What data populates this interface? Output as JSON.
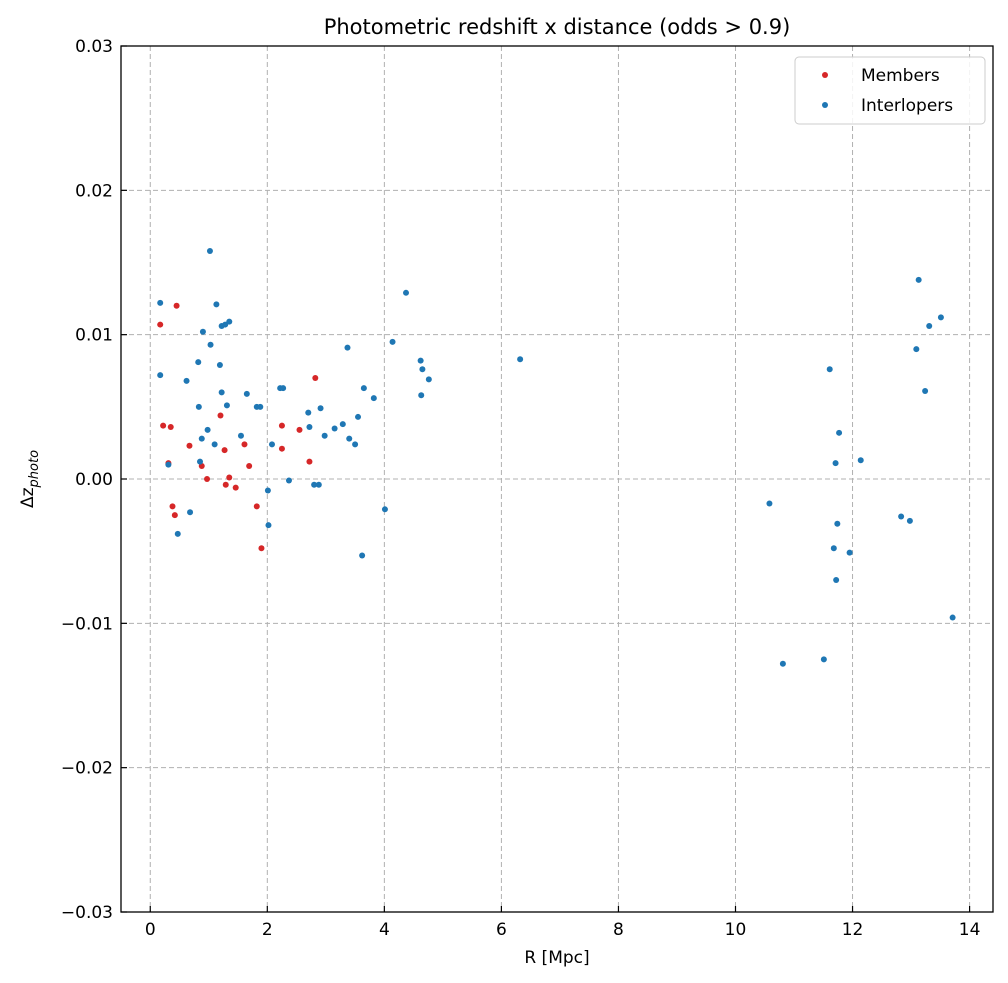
{
  "chart_data": {
    "type": "scatter",
    "title": "Photometric redshift x distance (odds > 0.9)",
    "xlabel": "R [Mpc]",
    "ylabel": "Δz",
    "ylabel_subscript": "photo",
    "xlim": [
      -0.5,
      14.4
    ],
    "ylim": [
      -0.03,
      0.03
    ],
    "xticks": [
      0,
      2,
      4,
      6,
      8,
      10,
      12,
      14
    ],
    "xtick_labels": [
      "0",
      "2",
      "4",
      "6",
      "8",
      "10",
      "12",
      "14"
    ],
    "yticks": [
      -0.03,
      -0.02,
      -0.01,
      0.0,
      0.01,
      0.02,
      0.03
    ],
    "ytick_labels": [
      "−0.03",
      "−0.02",
      "−0.01",
      "0.00",
      "0.01",
      "0.02",
      "0.03"
    ],
    "grid": true,
    "legend_position": "top-right",
    "series": [
      {
        "name": "Members",
        "color": "#d62728",
        "points": [
          [
            0.17,
            0.0107
          ],
          [
            0.45,
            0.012
          ],
          [
            0.22,
            0.0037
          ],
          [
            0.35,
            0.0036
          ],
          [
            0.67,
            0.0023
          ],
          [
            0.88,
            0.0009
          ],
          [
            0.97,
            0.0
          ],
          [
            1.2,
            0.0044
          ],
          [
            1.27,
            0.002
          ],
          [
            1.35,
            0.0001
          ],
          [
            1.29,
            -0.0004
          ],
          [
            1.46,
            -0.0006
          ],
          [
            1.61,
            0.0024
          ],
          [
            1.69,
            0.0009
          ],
          [
            1.82,
            -0.0019
          ],
          [
            1.9,
            -0.0048
          ],
          [
            0.38,
            -0.0019
          ],
          [
            0.42,
            -0.0025
          ],
          [
            0.31,
            0.0011
          ],
          [
            2.25,
            0.0037
          ],
          [
            2.25,
            0.0021
          ],
          [
            2.55,
            0.0034
          ],
          [
            2.72,
            0.0012
          ],
          [
            2.82,
            0.007
          ]
        ]
      },
      {
        "name": "Interlopers",
        "color": "#1f77b4",
        "points": [
          [
            0.17,
            0.0122
          ],
          [
            0.17,
            0.0072
          ],
          [
            0.31,
            0.001
          ],
          [
            0.47,
            -0.0038
          ],
          [
            0.62,
            0.0068
          ],
          [
            0.68,
            -0.0023
          ],
          [
            0.82,
            0.0081
          ],
          [
            0.83,
            0.005
          ],
          [
            0.85,
            0.0012
          ],
          [
            0.88,
            0.0028
          ],
          [
            0.9,
            0.0102
          ],
          [
            0.98,
            0.0034
          ],
          [
            1.02,
            0.0158
          ],
          [
            1.03,
            0.0093
          ],
          [
            1.1,
            0.0024
          ],
          [
            1.13,
            0.0121
          ],
          [
            1.19,
            0.0079
          ],
          [
            1.22,
            0.006
          ],
          [
            1.22,
            0.0106
          ],
          [
            1.28,
            0.0107
          ],
          [
            1.31,
            0.0051
          ],
          [
            1.35,
            0.0109
          ],
          [
            1.55,
            0.003
          ],
          [
            1.65,
            0.0059
          ],
          [
            1.82,
            0.005
          ],
          [
            1.88,
            0.005
          ],
          [
            2.01,
            -0.0008
          ],
          [
            2.02,
            -0.0032
          ],
          [
            2.08,
            0.0024
          ],
          [
            2.22,
            0.0063
          ],
          [
            2.27,
            0.0063
          ],
          [
            2.37,
            -0.0001
          ],
          [
            2.7,
            0.0046
          ],
          [
            2.72,
            0.0036
          ],
          [
            2.8,
            -0.0004
          ],
          [
            2.88,
            -0.0004
          ],
          [
            2.91,
            0.0049
          ],
          [
            2.98,
            0.003
          ],
          [
            3.15,
            0.0035
          ],
          [
            3.29,
            0.0038
          ],
          [
            3.37,
            0.0091
          ],
          [
            3.4,
            0.0028
          ],
          [
            3.5,
            0.0024
          ],
          [
            3.55,
            0.0043
          ],
          [
            3.62,
            -0.0053
          ],
          [
            3.65,
            0.0063
          ],
          [
            3.82,
            0.0056
          ],
          [
            4.01,
            -0.0021
          ],
          [
            4.14,
            0.0095
          ],
          [
            4.37,
            0.0129
          ],
          [
            4.62,
            0.0082
          ],
          [
            4.65,
            0.0076
          ],
          [
            4.63,
            0.0058
          ],
          [
            4.76,
            0.0069
          ],
          [
            6.32,
            0.0083
          ],
          [
            10.58,
            -0.0017
          ],
          [
            10.81,
            -0.0128
          ],
          [
            11.51,
            -0.0125
          ],
          [
            11.61,
            0.0076
          ],
          [
            11.68,
            -0.0048
          ],
          [
            11.71,
            0.0011
          ],
          [
            11.72,
            -0.007
          ],
          [
            11.74,
            -0.0031
          ],
          [
            11.77,
            0.0032
          ],
          [
            11.95,
            -0.0051
          ],
          [
            12.14,
            0.0013
          ],
          [
            12.83,
            -0.0026
          ],
          [
            12.98,
            -0.0029
          ],
          [
            13.09,
            0.009
          ],
          [
            13.13,
            0.0138
          ],
          [
            13.24,
            0.0061
          ],
          [
            13.31,
            0.0106
          ],
          [
            13.51,
            0.0112
          ],
          [
            13.71,
            -0.0096
          ]
        ]
      }
    ]
  }
}
